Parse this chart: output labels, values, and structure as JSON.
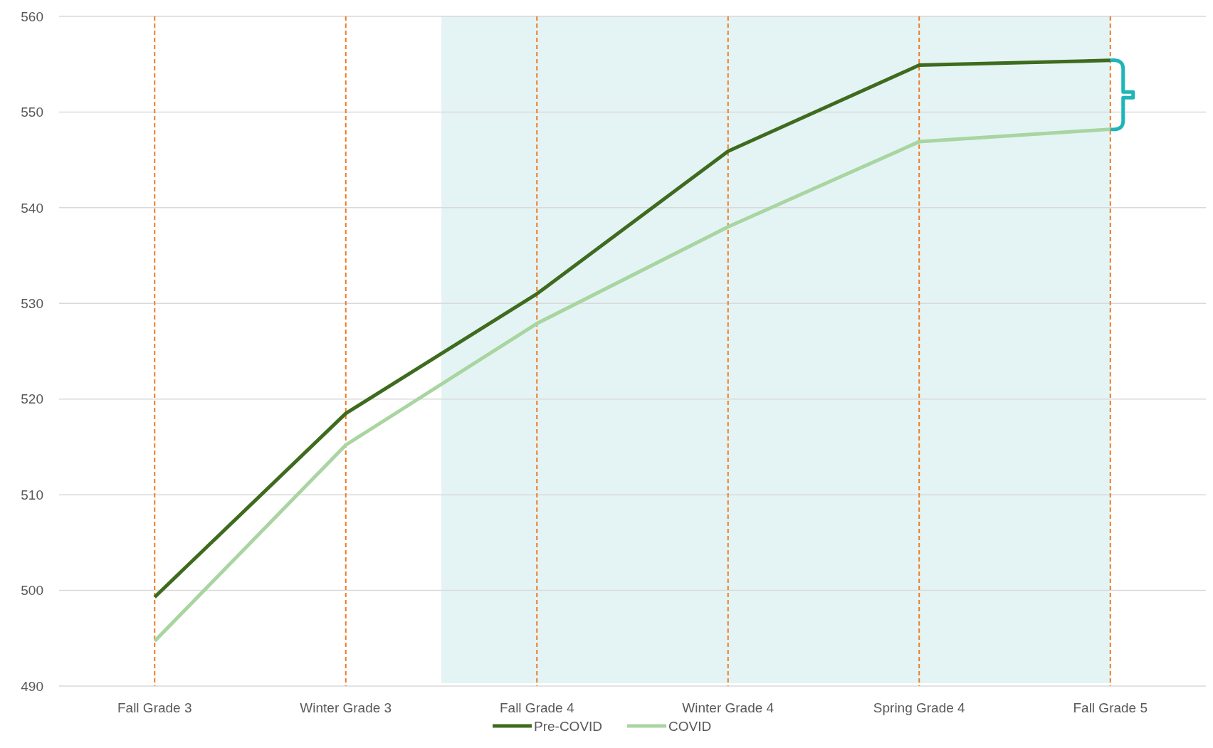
{
  "chart_data": {
    "type": "line",
    "categories": [
      "Fall Grade 3",
      "Winter Grade 3",
      "Fall Grade 4",
      "Winter Grade 4",
      "Spring Grade 4",
      "Fall Grade 5"
    ],
    "series": [
      {
        "name": "Pre-COVID",
        "color": "#3e6b1e",
        "values": [
          499.3,
          518.5,
          531.0,
          545.9,
          554.9,
          555.4
        ]
      },
      {
        "name": "COVID",
        "color": "#a8d5a0",
        "values": [
          494.7,
          515.2,
          527.9,
          538.0,
          546.9,
          548.2
        ]
      }
    ],
    "ylim": [
      490,
      560
    ],
    "yticks": [
      490,
      500,
      510,
      520,
      530,
      540,
      550,
      560
    ],
    "grid": "y",
    "legend": "bottom",
    "marker": "none",
    "line_style": "solid",
    "ref_lines": [
      {
        "axis": "x",
        "value": "Fall Grade 3",
        "color": "#f07b22",
        "line_style": "dashed"
      },
      {
        "axis": "x",
        "value": "Winter Grade 3",
        "color": "#f07b22",
        "line_style": "dashed"
      },
      {
        "axis": "x",
        "value": "Fall Grade 4",
        "color": "#f07b22",
        "line_style": "dashed"
      },
      {
        "axis": "x",
        "value": "Winter Grade 4",
        "color": "#f07b22",
        "line_style": "dashed"
      },
      {
        "axis": "x",
        "value": "Spring Grade 4",
        "color": "#f07b22",
        "line_style": "dashed"
      },
      {
        "axis": "x",
        "value": "Fall Grade 5",
        "color": "#f07b22",
        "line_style": "dashed"
      }
    ]
  }
}
